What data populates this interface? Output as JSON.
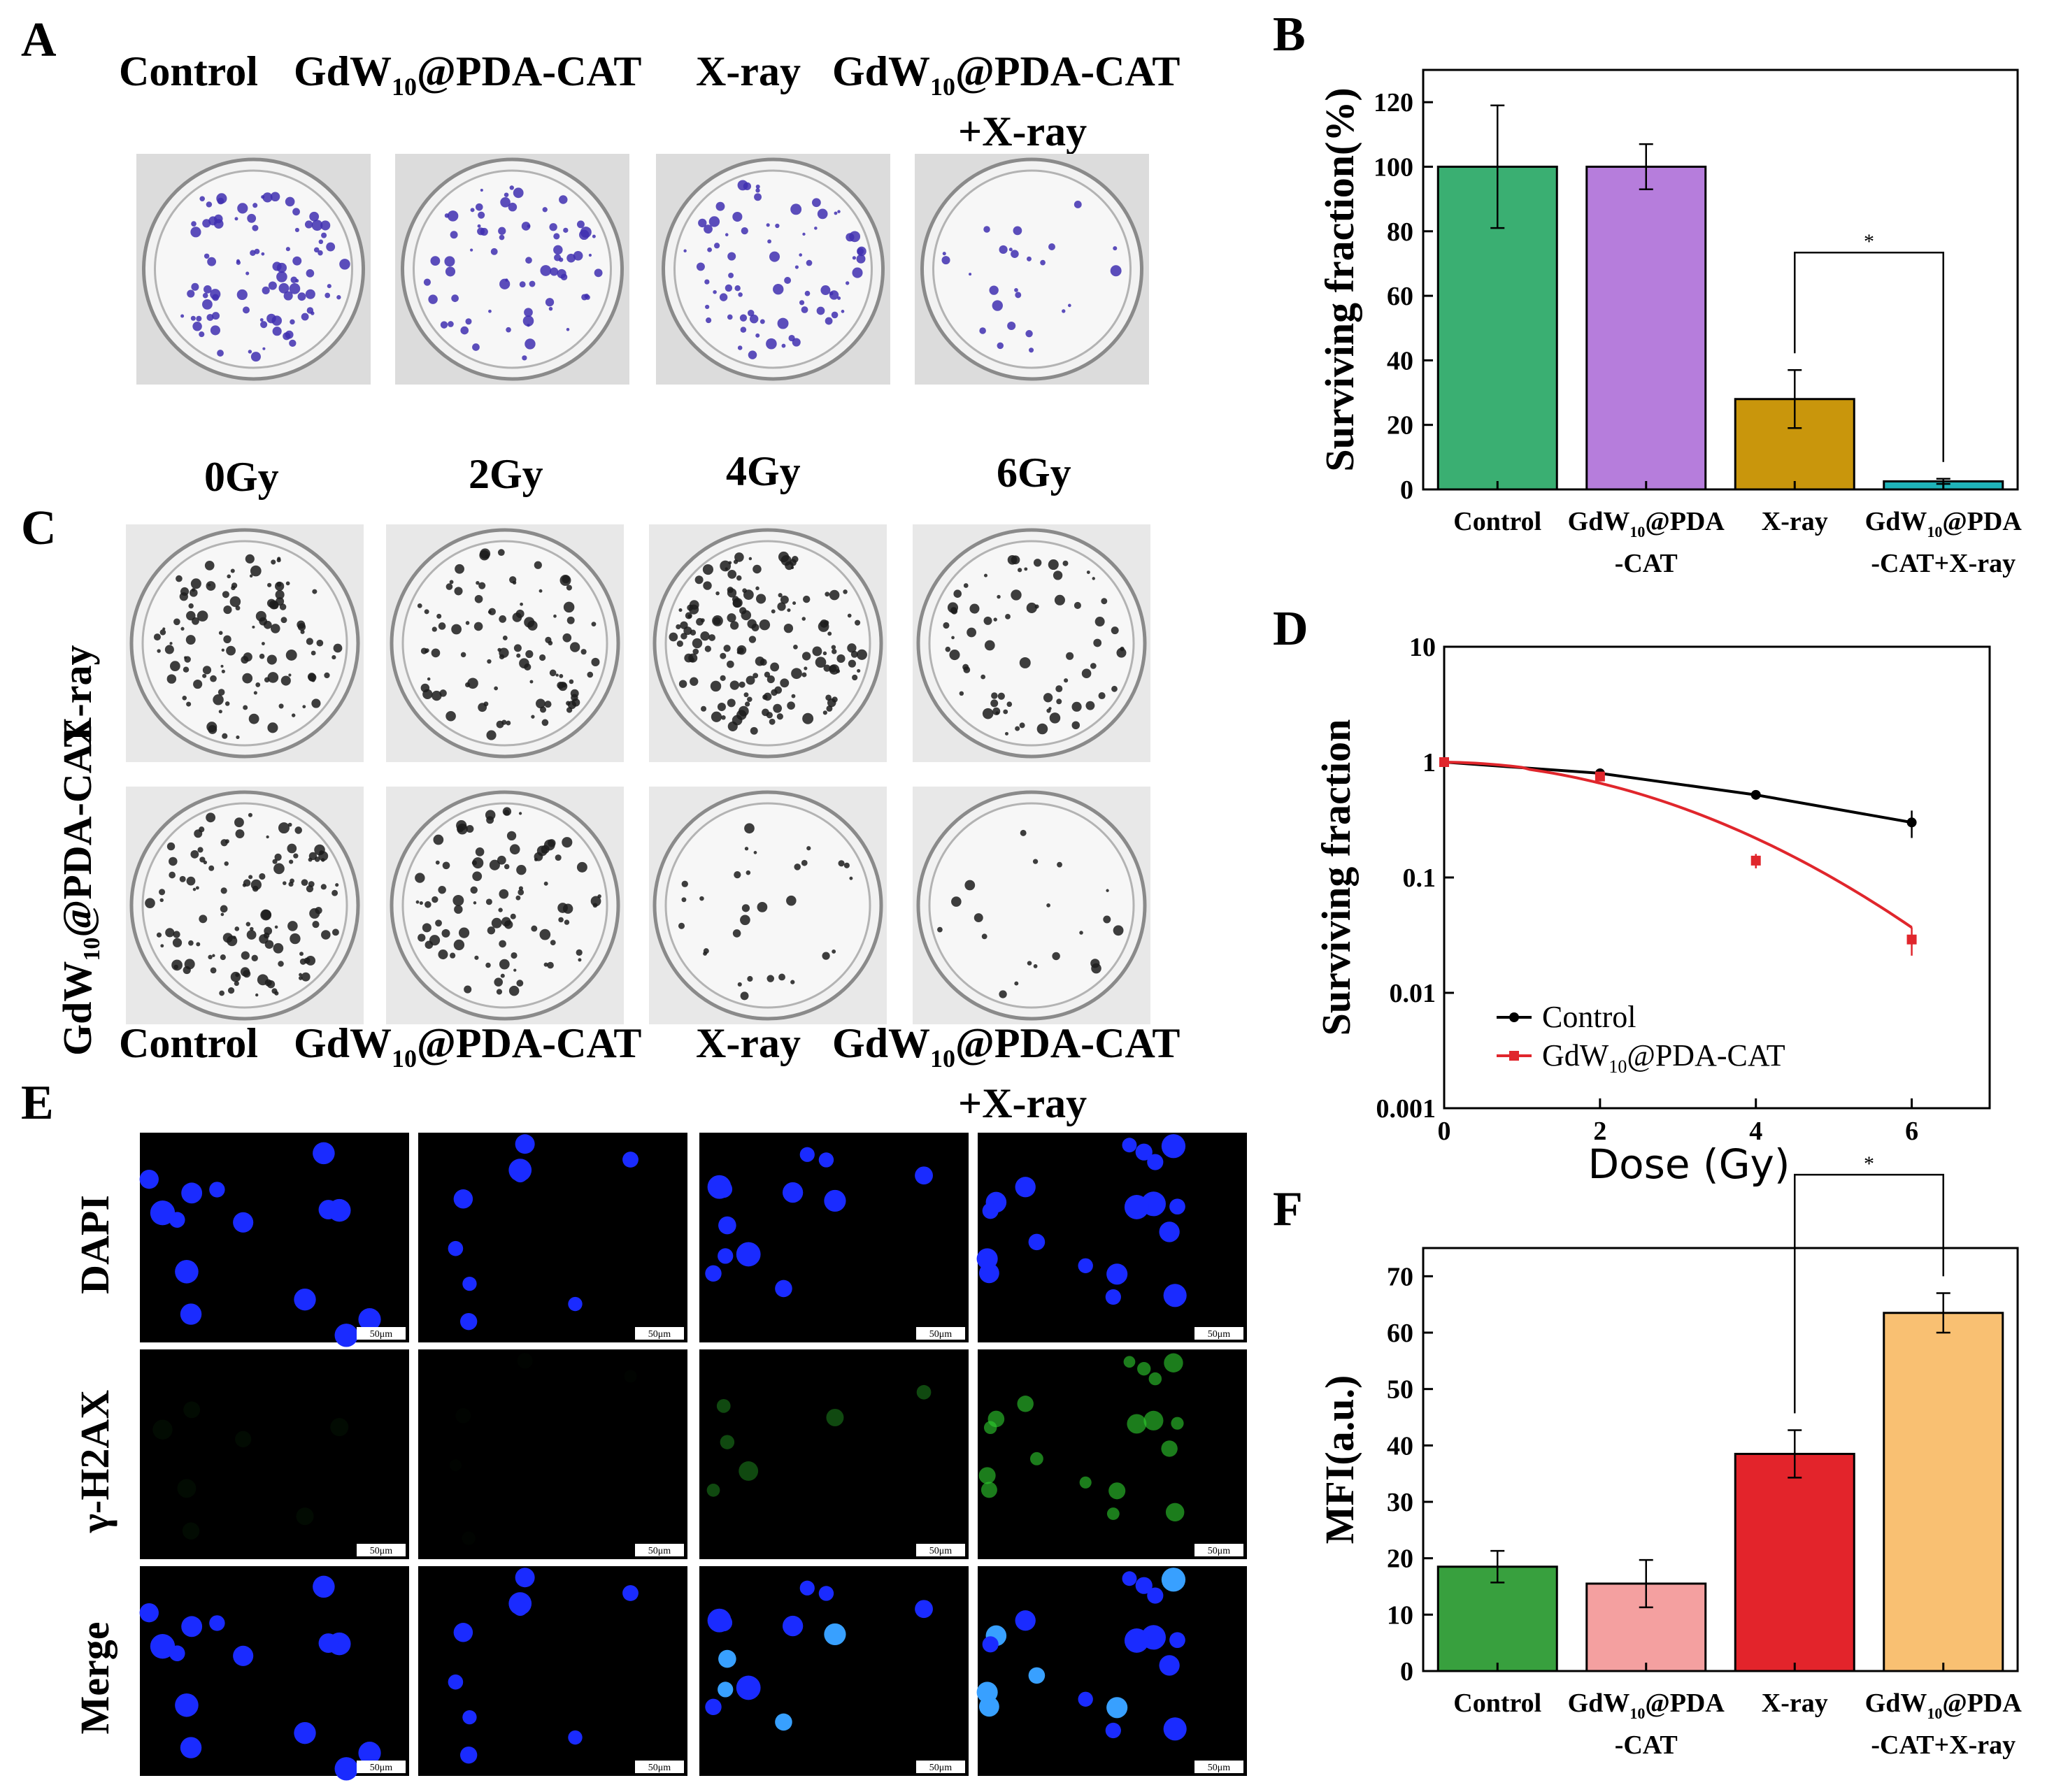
{
  "panels": {
    "A": {
      "letter": "A",
      "headers": [
        "Control",
        "GdW",
        "@PDA-CAT",
        "X-ray",
        "GdW",
        "@PDA-CAT",
        "+X-ray"
      ],
      "subscript": "10"
    },
    "B": {
      "letter": "B"
    },
    "C": {
      "letter": "C",
      "doses": [
        "0Gy",
        "2Gy",
        "4Gy",
        "6Gy"
      ],
      "row_labels": [
        "X-ray",
        "GdW",
        "10",
        "@PDA-CAT"
      ]
    },
    "D": {
      "letter": "D"
    },
    "E": {
      "letter": "E",
      "headers": [
        "Control",
        "GdW",
        "@PDA-CAT",
        "X-ray",
        "GdW",
        "@PDA-CAT",
        "+X-ray"
      ],
      "subscript": "10",
      "row_labels": [
        "DAPI",
        "γ-H2AX",
        "Merge"
      ],
      "scale_bar": "50μm"
    },
    "F": {
      "letter": "F"
    }
  },
  "colors": {
    "control_green_B": "#3aaf72",
    "gdw_purple": "#b67ddc",
    "xray_gold": "#c9960c",
    "combo_teal": "#1fb3b9",
    "control_green_F": "#38a03e",
    "gdw_pink": "#f4a0a0",
    "xray_red": "#e3242b",
    "combo_orange": "#f9c072",
    "line_black": "#000000",
    "line_red": "#e0262c",
    "dapi_blue": "#1a2bff",
    "h2ax_green": "#2fd12f"
  },
  "chart_data": [
    {
      "id": "B",
      "type": "bar",
      "categories": [
        "Control",
        "GdW10@PDA-CAT",
        "X-ray",
        "GdW10@PDA-CAT+X-ray"
      ],
      "category_lines": [
        [
          "Control"
        ],
        [
          "GdW",
          "10",
          "@PDA",
          "-CAT"
        ],
        [
          "X-ray"
        ],
        [
          "GdW",
          "10",
          "@PDA",
          "-CAT+X-ray"
        ]
      ],
      "values": [
        100,
        100,
        28,
        2.5
      ],
      "errors": [
        19,
        7,
        9,
        0.8
      ],
      "ylabel": "Surviving fraction(%)",
      "ylim": [
        0,
        130
      ],
      "yticks": [
        0,
        20,
        40,
        60,
        80,
        100,
        120
      ],
      "significance": {
        "between": [
          2,
          3
        ],
        "label": "*"
      }
    },
    {
      "id": "D",
      "type": "line",
      "xlabel": "Dose (Gy)",
      "ylabel": "Surviving fraction",
      "yscale": "log",
      "xlim": [
        0,
        7
      ],
      "ylim": [
        0.001,
        10
      ],
      "xticks": [
        0,
        2,
        4,
        6
      ],
      "ytick_labels": [
        "0.001",
        "0.01",
        "0.1",
        "1",
        "10"
      ],
      "series": [
        {
          "name": "Control",
          "x": [
            0,
            2,
            4,
            6
          ],
          "y": [
            1.0,
            0.8,
            0.52,
            0.3
          ],
          "errors": [
            0.04,
            0.05,
            0.03,
            0.08
          ]
        },
        {
          "name": "GdW10@PDA-CAT",
          "x": [
            0,
            2,
            4,
            6
          ],
          "y": [
            1.0,
            0.75,
            0.14,
            0.029
          ],
          "errors": [
            0.05,
            0.05,
            0.02,
            0.008
          ]
        }
      ],
      "legend_labels": [
        "Control",
        "GdW",
        "10",
        "@PDA-CAT"
      ]
    },
    {
      "id": "F",
      "type": "bar",
      "categories": [
        "Control",
        "GdW10@PDA-CAT",
        "X-ray",
        "GdW10@PDA-CAT+X-ray"
      ],
      "category_lines": [
        [
          "Control"
        ],
        [
          "GdW",
          "10",
          "@PDA",
          "-CAT"
        ],
        [
          "X-ray"
        ],
        [
          "GdW",
          "10",
          "@PDA",
          "-CAT+X-ray"
        ]
      ],
      "values": [
        18.5,
        15.5,
        38.5,
        63.5
      ],
      "errors": [
        2.8,
        4.2,
        4.2,
        3.5
      ],
      "ylabel": "MFI(a.u.)",
      "ylim": [
        0,
        75
      ],
      "yticks": [
        0,
        10,
        20,
        30,
        40,
        50,
        60,
        70
      ],
      "significance": {
        "between": [
          2,
          3
        ],
        "label": "*"
      }
    }
  ]
}
